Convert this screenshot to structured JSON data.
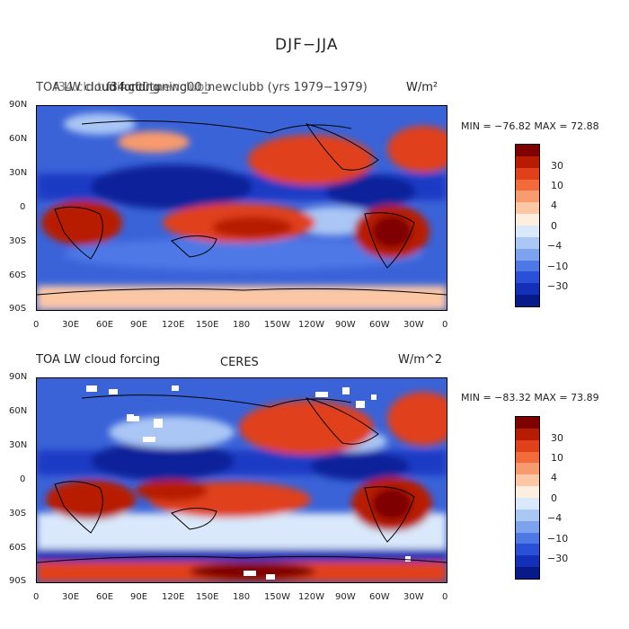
{
  "figure_title": "DJF−JJA",
  "panels": [
    {
      "variable": "TOA LW cloud forcing",
      "overlap_label": "f34.cld.tuning00_newclubb",
      "case_label": "f34.cld.tuning00_newclubb (yrs 1979−1979)",
      "units": "W/m²",
      "min_max": "MIN = −76.82  MAX =  72.88",
      "colorbar_labels": [
        "30",
        "10",
        "4",
        "0",
        "−4",
        "−10",
        "−30"
      ]
    },
    {
      "variable": "TOA LW cloud forcing",
      "case_label": "CERES",
      "units": "W/m^2",
      "min_max": "MIN = −83.32  MAX =  73.89",
      "colorbar_labels": [
        "30",
        "10",
        "4",
        "0",
        "−4",
        "−10",
        "−30"
      ]
    }
  ],
  "axes": {
    "lat_ticks": [
      "90N",
      "60N",
      "30N",
      "0",
      "30S",
      "60S",
      "90S"
    ],
    "lon_ticks": [
      "0",
      "30E",
      "60E",
      "90E",
      "120E",
      "150E",
      "180",
      "150W",
      "120W",
      "90W",
      "60W",
      "30W",
      "0"
    ]
  },
  "colorbar_colors": [
    "#7f0000",
    "#b71c00",
    "#e0401a",
    "#f36b3b",
    "#f79a6e",
    "#fbc7a5",
    "#fdeedf",
    "#d9e8fb",
    "#a9c6f5",
    "#7da2ee",
    "#4e78e6",
    "#2a4fd8",
    "#1330b8",
    "#061a8a"
  ]
}
